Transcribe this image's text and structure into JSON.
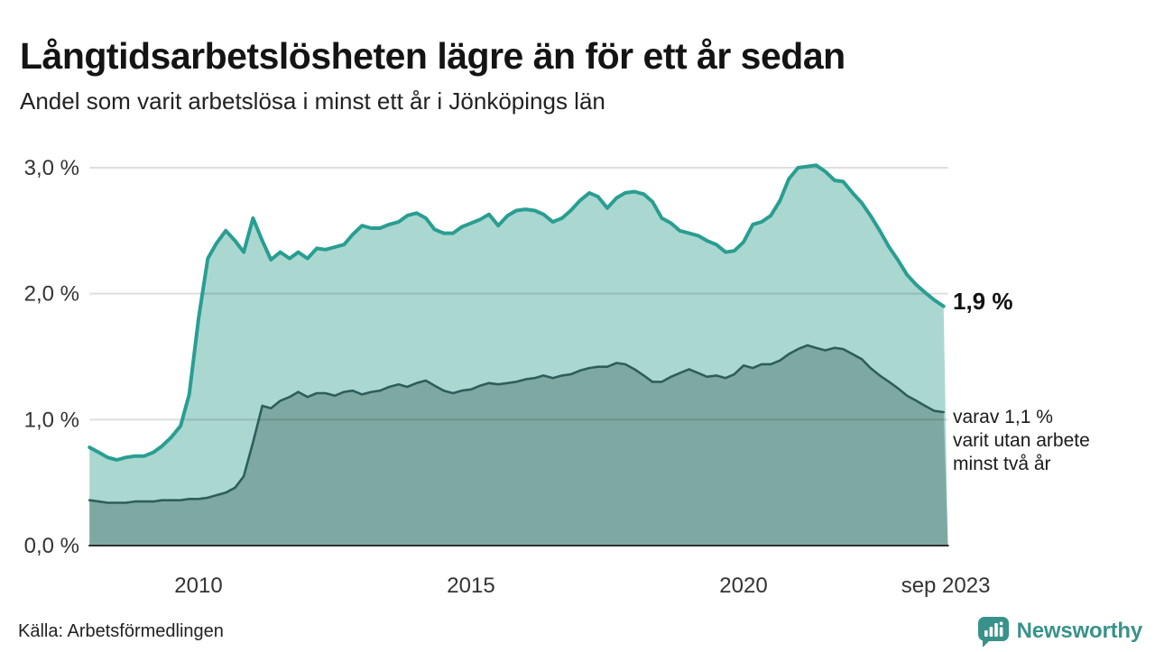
{
  "header": {
    "title": "Långtidsarbetslösheten lägre än för ett år sedan",
    "subtitle": "Andel som varit arbetslösa i minst ett år i Jönköpings län"
  },
  "annotations": {
    "end_value_label": "1,9 %",
    "secondary": [
      "varav 1,1 %",
      "varit utan arbete",
      "minst två år"
    ]
  },
  "footer": {
    "source": "Källa: Arbetsförmedlingen",
    "brand_name": "Newsworthy"
  },
  "colors": {
    "series1_line": "#299e92",
    "series1_fill": "#abd7d1",
    "series2_line": "#2d5f58",
    "series2_fill": "#7ea9a2",
    "gridline_overlay": "rgba(0,0,0,0.13)",
    "baseline": "#2f2f2f",
    "brand_teal": "#39928a",
    "text": "#1a1a1a"
  },
  "chart_data": {
    "type": "area",
    "title": "Långtidsarbetslösheten lägre än för ett år sedan",
    "subtitle": "Andel som varit arbetslösa i minst ett år i Jönköpings län",
    "unit": "%",
    "x_axis": {
      "range_years": [
        2008.0,
        2023.75
      ],
      "ticks": [
        {
          "label": "2010",
          "year": 2010.0
        },
        {
          "label": "2015",
          "year": 2015.0
        },
        {
          "label": "2020",
          "year": 2020.0
        },
        {
          "label": "sep 2023",
          "year": 2023.71
        }
      ]
    },
    "y_axis": {
      "range": [
        0,
        3.0
      ],
      "gridlines": true,
      "ticks": [
        {
          "label": "0,0 %",
          "value": 0.0
        },
        {
          "label": "1,0 %",
          "value": 1.0
        },
        {
          "label": "2,0 %",
          "value": 2.0
        },
        {
          "label": "3,0 %",
          "value": 3.0
        }
      ]
    },
    "x": [
      2008.0,
      2008.17,
      2008.33,
      2008.5,
      2008.67,
      2008.83,
      2009.0,
      2009.17,
      2009.33,
      2009.5,
      2009.67,
      2009.83,
      2010.0,
      2010.17,
      2010.33,
      2010.5,
      2010.67,
      2010.83,
      2011.0,
      2011.17,
      2011.33,
      2011.5,
      2011.67,
      2011.83,
      2012.0,
      2012.17,
      2012.33,
      2012.5,
      2012.67,
      2012.83,
      2013.0,
      2013.17,
      2013.33,
      2013.5,
      2013.67,
      2013.83,
      2014.0,
      2014.17,
      2014.33,
      2014.5,
      2014.67,
      2014.83,
      2015.0,
      2015.17,
      2015.33,
      2015.5,
      2015.67,
      2015.83,
      2016.0,
      2016.17,
      2016.33,
      2016.5,
      2016.67,
      2016.83,
      2017.0,
      2017.17,
      2017.33,
      2017.5,
      2017.67,
      2017.83,
      2018.0,
      2018.17,
      2018.33,
      2018.5,
      2018.67,
      2018.83,
      2019.0,
      2019.17,
      2019.33,
      2019.5,
      2019.67,
      2019.83,
      2020.0,
      2020.17,
      2020.33,
      2020.5,
      2020.67,
      2020.83,
      2021.0,
      2021.17,
      2021.33,
      2021.5,
      2021.67,
      2021.83,
      2022.0,
      2022.17,
      2022.33,
      2022.5,
      2022.67,
      2022.83,
      2023.0,
      2023.17,
      2023.33,
      2023.5,
      2023.67
    ],
    "series": [
      {
        "name": "Andel arbetslösa minst ett år",
        "end_label": "1,9 %",
        "line_color": "#299e92",
        "fill_color": "#abd7d1",
        "values": [
          0.78,
          0.74,
          0.7,
          0.68,
          0.7,
          0.71,
          0.71,
          0.74,
          0.79,
          0.86,
          0.95,
          1.2,
          1.8,
          2.28,
          2.4,
          2.5,
          2.42,
          2.33,
          2.6,
          2.42,
          2.27,
          2.33,
          2.28,
          2.33,
          2.28,
          2.36,
          2.35,
          2.37,
          2.39,
          2.47,
          2.54,
          2.52,
          2.52,
          2.55,
          2.57,
          2.62,
          2.64,
          2.6,
          2.51,
          2.48,
          2.48,
          2.53,
          2.56,
          2.59,
          2.63,
          2.54,
          2.62,
          2.66,
          2.67,
          2.66,
          2.63,
          2.57,
          2.6,
          2.66,
          2.74,
          2.8,
          2.77,
          2.68,
          2.76,
          2.8,
          2.81,
          2.79,
          2.73,
          2.6,
          2.56,
          2.5,
          2.48,
          2.46,
          2.42,
          2.39,
          2.33,
          2.34,
          2.41,
          2.55,
          2.57,
          2.62,
          2.74,
          2.91,
          3.0,
          3.01,
          3.02,
          2.97,
          2.9,
          2.89,
          2.8,
          2.72,
          2.62,
          2.5,
          2.37,
          2.27,
          2.15,
          2.07,
          2.01,
          1.95,
          1.9
        ]
      },
      {
        "name": "varav arbetslösa minst två år",
        "end_label": "varav 1,1 % varit utan arbete minst två år",
        "line_color": "#2d5f58",
        "fill_color": "#7ea9a2",
        "values": [
          0.36,
          0.35,
          0.34,
          0.34,
          0.34,
          0.35,
          0.35,
          0.35,
          0.36,
          0.36,
          0.36,
          0.37,
          0.37,
          0.38,
          0.4,
          0.42,
          0.46,
          0.55,
          0.82,
          1.11,
          1.09,
          1.15,
          1.18,
          1.22,
          1.18,
          1.21,
          1.21,
          1.19,
          1.22,
          1.23,
          1.2,
          1.22,
          1.23,
          1.26,
          1.28,
          1.26,
          1.29,
          1.31,
          1.27,
          1.23,
          1.21,
          1.23,
          1.24,
          1.27,
          1.29,
          1.28,
          1.29,
          1.3,
          1.32,
          1.33,
          1.35,
          1.33,
          1.35,
          1.36,
          1.39,
          1.41,
          1.42,
          1.42,
          1.45,
          1.44,
          1.4,
          1.35,
          1.3,
          1.3,
          1.34,
          1.37,
          1.4,
          1.37,
          1.34,
          1.35,
          1.33,
          1.36,
          1.43,
          1.41,
          1.44,
          1.44,
          1.47,
          1.52,
          1.56,
          1.59,
          1.57,
          1.55,
          1.57,
          1.56,
          1.52,
          1.48,
          1.41,
          1.35,
          1.3,
          1.25,
          1.19,
          1.15,
          1.11,
          1.07,
          1.06
        ]
      }
    ],
    "legend_position": "none"
  }
}
